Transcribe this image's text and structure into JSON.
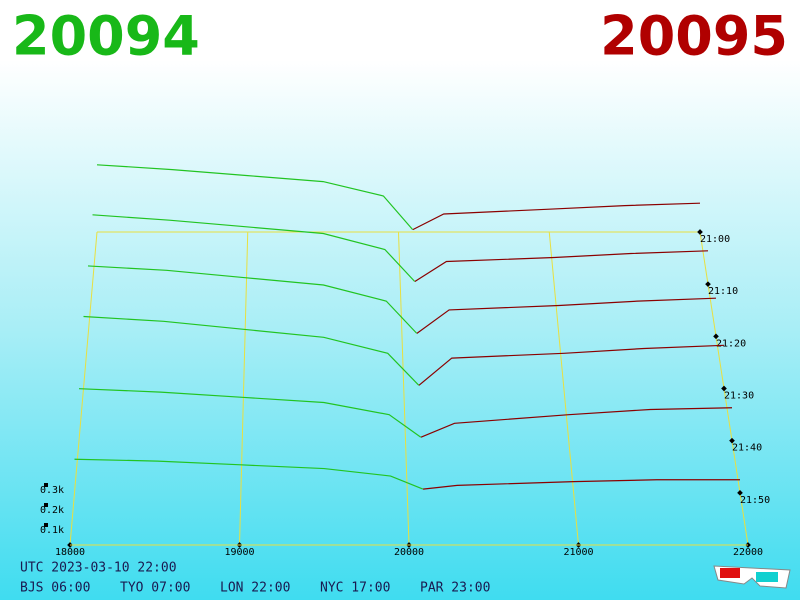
{
  "chart_data": {
    "type": "depth-3d",
    "bid_price": 20094,
    "ask_price": 20095,
    "bid_color": "#18b818",
    "ask_color": "#b00000",
    "xlim": [
      18000,
      22000
    ],
    "xticks": [
      18000,
      19000,
      20000,
      21000,
      22000
    ],
    "zlim": [
      0,
      600
    ],
    "zticks": [
      {
        "value": 100,
        "label": "0.1k"
      },
      {
        "value": 200,
        "label": "0.2k"
      },
      {
        "value": 300,
        "label": "0.3k"
      }
    ],
    "times": [
      "21:00",
      "21:10",
      "21:20",
      "21:30",
      "21:40",
      "21:50"
    ],
    "bids": {
      "color": "#22c422",
      "prices": [
        18000,
        18500,
        19000,
        19500,
        19900,
        20094
      ],
      "slices": [
        [
          560,
          520,
          470,
          420,
          300,
          20
        ],
        [
          520,
          480,
          430,
          380,
          260,
          20
        ],
        [
          480,
          450,
          400,
          350,
          240,
          20
        ],
        [
          450,
          420,
          370,
          320,
          220,
          20
        ],
        [
          300,
          280,
          250,
          220,
          150,
          20
        ],
        [
          180,
          170,
          150,
          130,
          90,
          20
        ]
      ]
    },
    "asks": {
      "color": "#8b0000",
      "prices": [
        20095,
        20300,
        21000,
        21500,
        22000
      ],
      "slices": [
        [
          20,
          150,
          190,
          220,
          240
        ],
        [
          20,
          170,
          200,
          230,
          250
        ],
        [
          20,
          180,
          210,
          240,
          260
        ],
        [
          20,
          190,
          220,
          250,
          270
        ],
        [
          20,
          100,
          150,
          180,
          190
        ],
        [
          20,
          40,
          60,
          70,
          70
        ]
      ]
    },
    "clock": "UTC 2023-03-10 22:00",
    "zones": [
      "BJS 06:00",
      "TYO 07:00",
      "LON 22:00",
      "NYC 17:00",
      "PAR 23:00"
    ]
  }
}
